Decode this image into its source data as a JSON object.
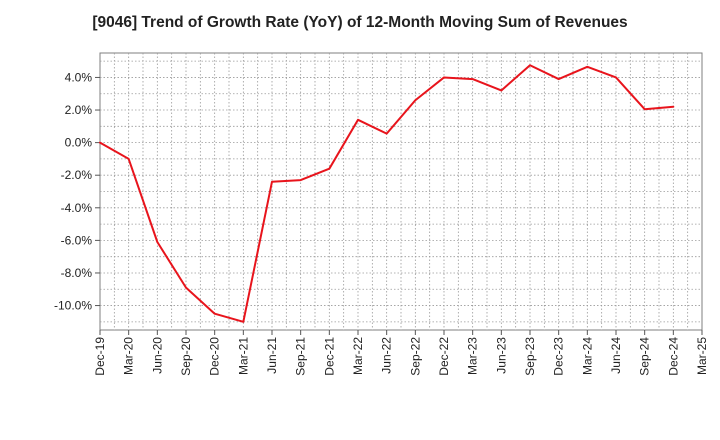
{
  "chart_data": {
    "type": "line",
    "title": "[9046]  Trend of Growth Rate (YoY) of 12-Month Moving Sum of Revenues",
    "xlabel": "",
    "ylabel": "",
    "categories": [
      "Dec-19",
      "Mar-20",
      "Jun-20",
      "Sep-20",
      "Dec-20",
      "Mar-21",
      "Jun-21",
      "Sep-21",
      "Dec-21",
      "Mar-22",
      "Jun-22",
      "Sep-22",
      "Dec-22",
      "Mar-23",
      "Jun-23",
      "Sep-23",
      "Dec-23",
      "Mar-24",
      "Jun-24",
      "Sep-24",
      "Dec-24",
      "Mar-25"
    ],
    "series": [
      {
        "values": [
          0.0,
          -1.0,
          -6.1,
          -8.9,
          -10.5,
          -11.0,
          -2.4,
          -2.3,
          -1.6,
          1.4,
          0.55,
          2.6,
          4.0,
          3.9,
          3.2,
          4.75,
          3.9,
          4.65,
          4.0,
          2.05,
          2.2,
          null
        ],
        "color": "#e8141c"
      }
    ],
    "ylim": [
      -11.5,
      5.5
    ],
    "yticks": [
      -10,
      -8,
      -6,
      -4,
      -2,
      0,
      2,
      4
    ],
    "ytick_labels": [
      "-10.0%",
      "-8.0%",
      "-6.0%",
      "-4.0%",
      "-2.0%",
      "0.0%",
      "2.0%",
      "4.0%"
    ],
    "grid": true,
    "legend": "none"
  }
}
